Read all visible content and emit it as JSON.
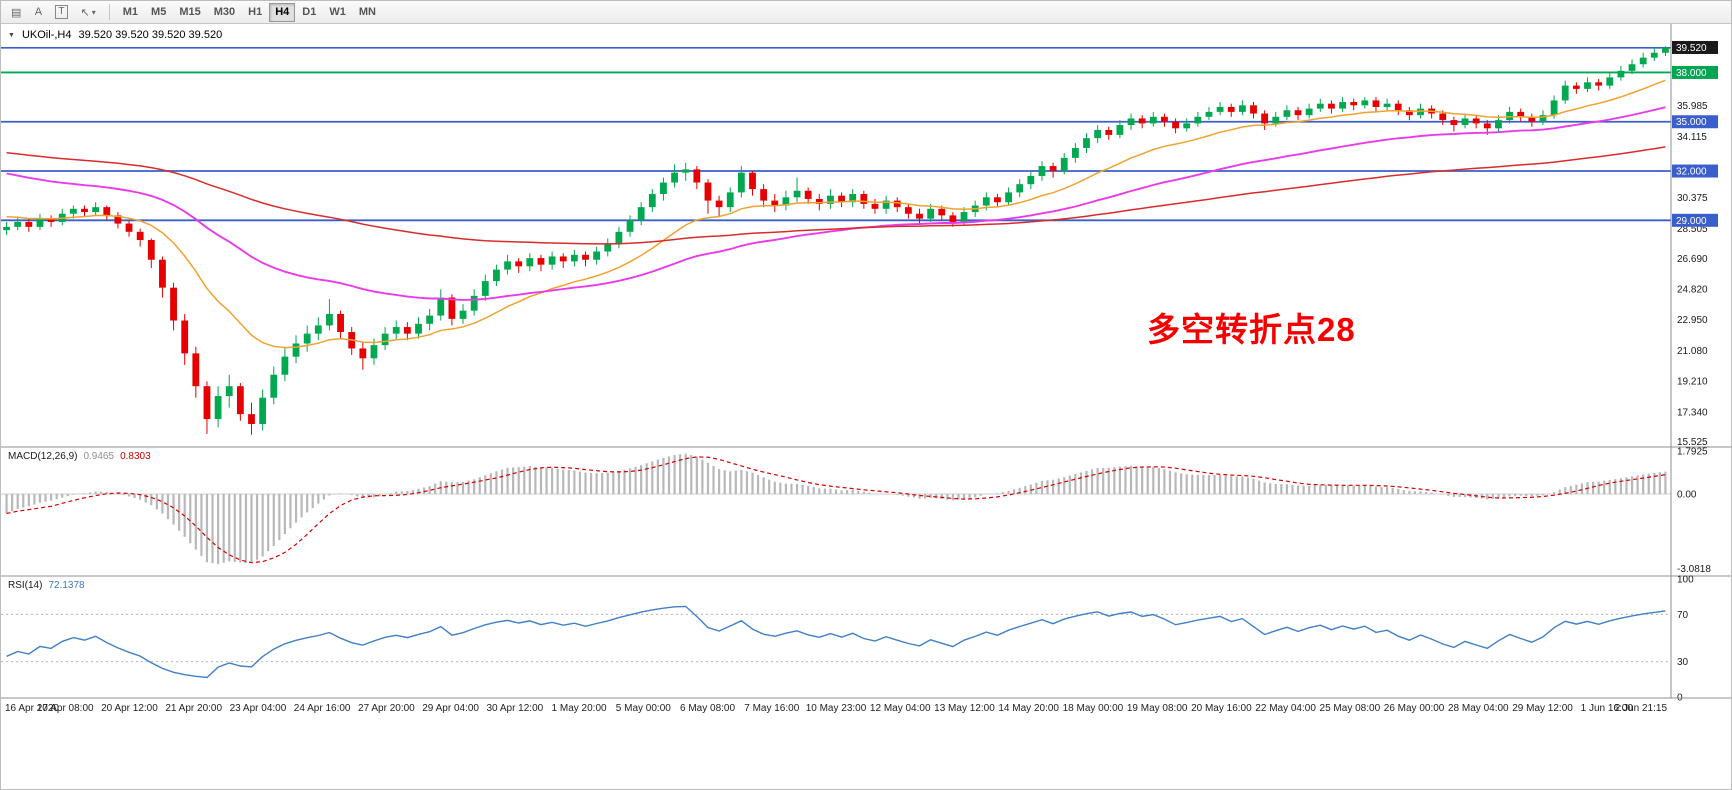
{
  "toolbar": {
    "tools": [
      {
        "name": "chart-window-icon",
        "glyph": "▤"
      },
      {
        "name": "letter-a-icon",
        "glyph": "A"
      },
      {
        "name": "text-box-icon",
        "glyph": "T"
      },
      {
        "name": "cursor-icon",
        "glyph": "↖"
      },
      {
        "name": "chevron-down-icon",
        "glyph": "▾"
      }
    ],
    "timeframes": [
      "M1",
      "M5",
      "M15",
      "M30",
      "H1",
      "H4",
      "D1",
      "W1",
      "MN"
    ],
    "active_timeframe": "H4"
  },
  "chart_data": {
    "type": "candlestick-with-indicators",
    "header": {
      "dropdown_glyph": "▼",
      "symbol": "UKOil-,H4",
      "ohlc": "39.520 39.520 39.520 39.520"
    },
    "annotation": {
      "text": "多空转折点28",
      "color": "#f40000"
    },
    "price_range": [
      15.2,
      40.95
    ],
    "colors": {
      "up": "#00A94F",
      "down": "#E60000",
      "histogram": "#b8b8b8",
      "signal": "#D40000",
      "rsi": "#4080C8"
    },
    "horizontal_lines": [
      {
        "price": 39.5,
        "color": "#3A5FCD",
        "width": 1.6
      },
      {
        "price": 38.0,
        "color": "#00A651",
        "width": 1.8
      },
      {
        "price": 35.0,
        "color": "#3A5FCD",
        "width": 1.8
      },
      {
        "price": 32.0,
        "color": "#3A5FCD",
        "width": 1.8
      },
      {
        "price": 29.0,
        "color": "#3A5FCD",
        "width": 1.8
      }
    ],
    "price_tags": [
      {
        "text": "39.520",
        "price": 39.52,
        "bg": "#1a1a1a"
      },
      {
        "text": "38.000",
        "price": 38.0,
        "bg": "#00A651"
      },
      {
        "text": "35.000",
        "price": 35.0,
        "bg": "#3A5FCD"
      },
      {
        "text": "32.000",
        "price": 32.0,
        "bg": "#3A5FCD"
      },
      {
        "text": "29.000",
        "price": 29.0,
        "bg": "#3A5FCD"
      }
    ],
    "axis_labels": [
      {
        "text": "35.985",
        "price": 35.985
      },
      {
        "text": "34.115",
        "price": 34.115
      },
      {
        "text": "30.375",
        "price": 30.375
      },
      {
        "text": "28.505",
        "price": 28.505
      },
      {
        "text": "26.690",
        "price": 26.69
      },
      {
        "text": "24.820",
        "price": 24.82
      },
      {
        "text": "22.950",
        "price": 22.95
      },
      {
        "text": "21.080",
        "price": 21.08
      },
      {
        "text": "19.210",
        "price": 19.21
      },
      {
        "text": "17.340",
        "price": 17.34
      },
      {
        "text": "15.525",
        "price": 15.525
      }
    ],
    "moving_averages": [
      {
        "name": "fast-ma",
        "period": 16,
        "seed": 29.3,
        "color": "#EFA32F",
        "width": 1.5
      },
      {
        "name": "mid-ma",
        "period": 45,
        "seed": 32.0,
        "color": "#E93CE9",
        "width": 1.9
      },
      {
        "name": "slow-ma",
        "period": 110,
        "seed": 33.2,
        "color": "#D92B2B",
        "width": 1.5
      }
    ],
    "candles": [
      [
        28.4,
        28.9,
        28.1,
        28.6
      ],
      [
        28.6,
        29.2,
        28.4,
        28.9
      ],
      [
        28.9,
        29.1,
        28.3,
        28.6
      ],
      [
        28.6,
        29.4,
        28.4,
        29.1
      ],
      [
        29.1,
        29.3,
        28.6,
        28.9
      ],
      [
        28.9,
        29.7,
        28.7,
        29.4
      ],
      [
        29.4,
        29.9,
        29.1,
        29.7
      ],
      [
        29.7,
        29.9,
        29.2,
        29.5
      ],
      [
        29.5,
        30.1,
        29.3,
        29.8
      ],
      [
        29.8,
        29.9,
        29.0,
        29.3
      ],
      [
        29.3,
        29.5,
        28.5,
        28.8
      ],
      [
        28.8,
        29.0,
        28.0,
        28.3
      ],
      [
        28.3,
        28.5,
        27.4,
        27.8
      ],
      [
        27.8,
        27.9,
        26.1,
        26.6
      ],
      [
        26.6,
        26.8,
        24.3,
        24.9
      ],
      [
        24.9,
        25.2,
        22.3,
        22.9
      ],
      [
        22.9,
        23.3,
        20.2,
        20.9
      ],
      [
        20.9,
        21.3,
        18.2,
        18.9
      ],
      [
        18.9,
        19.2,
        16.0,
        16.9
      ],
      [
        16.9,
        18.9,
        16.4,
        18.3
      ],
      [
        18.3,
        19.6,
        17.6,
        18.9
      ],
      [
        18.9,
        19.1,
        16.8,
        17.2
      ],
      [
        17.2,
        17.9,
        15.95,
        16.6
      ],
      [
        16.6,
        18.7,
        16.2,
        18.2
      ],
      [
        18.2,
        20.1,
        17.8,
        19.6
      ],
      [
        19.6,
        21.3,
        19.2,
        20.7
      ],
      [
        20.7,
        22.0,
        20.3,
        21.5
      ],
      [
        21.5,
        22.6,
        21.0,
        22.1
      ],
      [
        22.1,
        23.1,
        21.7,
        22.6
      ],
      [
        22.6,
        24.2,
        22.3,
        23.3
      ],
      [
        23.3,
        23.5,
        21.8,
        22.2
      ],
      [
        22.2,
        22.5,
        20.8,
        21.2
      ],
      [
        21.2,
        21.6,
        19.9,
        20.6
      ],
      [
        20.6,
        21.8,
        20.2,
        21.4
      ],
      [
        21.4,
        22.5,
        21.1,
        22.1
      ],
      [
        22.1,
        22.9,
        21.7,
        22.5
      ],
      [
        22.5,
        22.8,
        21.7,
        22.1
      ],
      [
        22.1,
        23.1,
        21.8,
        22.7
      ],
      [
        22.7,
        23.6,
        22.3,
        23.2
      ],
      [
        23.2,
        24.8,
        22.9,
        24.3
      ],
      [
        24.3,
        24.5,
        22.6,
        23.0
      ],
      [
        23.0,
        23.9,
        22.7,
        23.5
      ],
      [
        23.5,
        24.8,
        23.2,
        24.4
      ],
      [
        24.4,
        25.7,
        24.1,
        25.3
      ],
      [
        25.3,
        26.3,
        25.0,
        26.0
      ],
      [
        26.0,
        26.9,
        25.7,
        26.5
      ],
      [
        26.5,
        26.7,
        25.8,
        26.2
      ],
      [
        26.2,
        27.0,
        25.9,
        26.7
      ],
      [
        26.7,
        26.9,
        25.9,
        26.3
      ],
      [
        26.3,
        27.1,
        26.0,
        26.8
      ],
      [
        26.8,
        27.0,
        26.1,
        26.5
      ],
      [
        26.5,
        27.2,
        26.2,
        26.9
      ],
      [
        26.9,
        27.1,
        26.2,
        26.6
      ],
      [
        26.6,
        27.4,
        26.3,
        27.1
      ],
      [
        27.1,
        27.9,
        26.8,
        27.6
      ],
      [
        27.6,
        28.6,
        27.3,
        28.3
      ],
      [
        28.3,
        29.3,
        28.0,
        29.0
      ],
      [
        29.0,
        30.1,
        28.7,
        29.8
      ],
      [
        29.8,
        30.9,
        29.5,
        30.6
      ],
      [
        30.6,
        31.6,
        30.2,
        31.3
      ],
      [
        31.3,
        32.4,
        31.0,
        31.9
      ],
      [
        31.9,
        32.5,
        31.4,
        32.1
      ],
      [
        32.1,
        32.3,
        30.9,
        31.3
      ],
      [
        31.3,
        31.5,
        29.4,
        30.2
      ],
      [
        30.2,
        30.5,
        29.2,
        29.8
      ],
      [
        29.8,
        31.0,
        29.5,
        30.7
      ],
      [
        30.7,
        32.3,
        30.4,
        31.9
      ],
      [
        31.9,
        32.0,
        30.5,
        30.9
      ],
      [
        30.9,
        31.2,
        29.8,
        30.2
      ],
      [
        30.2,
        30.6,
        29.5,
        29.9
      ],
      [
        29.9,
        30.8,
        29.6,
        30.4
      ],
      [
        30.4,
        31.6,
        30.1,
        30.8
      ],
      [
        30.8,
        31.0,
        30.0,
        30.3
      ],
      [
        30.3,
        30.6,
        29.6,
        30.0
      ],
      [
        30.0,
        30.9,
        29.7,
        30.5
      ],
      [
        30.5,
        30.7,
        29.8,
        30.1
      ],
      [
        30.1,
        30.9,
        29.8,
        30.6
      ],
      [
        30.6,
        30.8,
        29.7,
        30.0
      ],
      [
        30.0,
        30.3,
        29.4,
        29.7
      ],
      [
        29.7,
        30.5,
        29.4,
        30.2
      ],
      [
        30.2,
        30.4,
        29.5,
        29.8
      ],
      [
        29.8,
        30.0,
        29.1,
        29.4
      ],
      [
        29.4,
        29.7,
        28.8,
        29.1
      ],
      [
        29.1,
        30.0,
        28.9,
        29.7
      ],
      [
        29.7,
        29.9,
        29.0,
        29.3
      ],
      [
        29.3,
        29.5,
        28.6,
        28.9
      ],
      [
        28.9,
        29.8,
        28.7,
        29.5
      ],
      [
        29.5,
        30.2,
        29.2,
        29.9
      ],
      [
        29.9,
        30.7,
        29.6,
        30.4
      ],
      [
        30.4,
        30.6,
        29.8,
        30.1
      ],
      [
        30.1,
        31.0,
        29.9,
        30.7
      ],
      [
        30.7,
        31.5,
        30.4,
        31.2
      ],
      [
        31.2,
        32.0,
        30.9,
        31.7
      ],
      [
        31.7,
        32.6,
        31.4,
        32.3
      ],
      [
        32.3,
        32.5,
        31.6,
        32.0
      ],
      [
        32.0,
        33.1,
        31.8,
        32.8
      ],
      [
        32.8,
        33.7,
        32.5,
        33.4
      ],
      [
        33.4,
        34.3,
        33.1,
        34.0
      ],
      [
        34.0,
        34.8,
        33.7,
        34.5
      ],
      [
        34.5,
        34.7,
        33.9,
        34.2
      ],
      [
        34.2,
        35.1,
        34.0,
        34.8
      ],
      [
        34.8,
        35.5,
        34.5,
        35.2
      ],
      [
        35.2,
        35.4,
        34.6,
        34.9
      ],
      [
        34.9,
        35.6,
        34.7,
        35.3
      ],
      [
        35.3,
        35.5,
        34.7,
        35.0
      ],
      [
        35.0,
        35.2,
        34.3,
        34.6
      ],
      [
        34.6,
        35.2,
        34.4,
        34.9
      ],
      [
        34.9,
        35.6,
        34.7,
        35.3
      ],
      [
        35.3,
        35.9,
        35.1,
        35.6
      ],
      [
        35.6,
        36.2,
        35.4,
        35.9
      ],
      [
        35.9,
        36.1,
        35.3,
        35.6
      ],
      [
        35.6,
        36.3,
        35.4,
        36.0
      ],
      [
        36.0,
        36.2,
        35.2,
        35.5
      ],
      [
        35.5,
        35.7,
        34.5,
        34.9
      ],
      [
        34.9,
        35.6,
        34.7,
        35.3
      ],
      [
        35.3,
        36.0,
        35.1,
        35.7
      ],
      [
        35.7,
        35.9,
        35.1,
        35.4
      ],
      [
        35.4,
        36.1,
        35.2,
        35.8
      ],
      [
        35.8,
        36.4,
        35.6,
        36.1
      ],
      [
        36.1,
        36.3,
        35.5,
        35.8
      ],
      [
        35.8,
        36.5,
        35.6,
        36.2
      ],
      [
        36.2,
        36.4,
        35.7,
        36.0
      ],
      [
        36.0,
        36.5,
        35.8,
        36.3
      ],
      [
        36.3,
        36.5,
        35.6,
        35.9
      ],
      [
        35.9,
        36.4,
        35.7,
        36.1
      ],
      [
        36.1,
        36.3,
        35.4,
        35.7
      ],
      [
        35.7,
        35.9,
        35.1,
        35.4
      ],
      [
        35.4,
        36.1,
        35.2,
        35.8
      ],
      [
        35.8,
        36.0,
        35.2,
        35.5
      ],
      [
        35.5,
        35.7,
        34.8,
        35.1
      ],
      [
        35.1,
        35.3,
        34.4,
        34.8
      ],
      [
        34.8,
        35.5,
        34.6,
        35.2
      ],
      [
        35.2,
        35.4,
        34.6,
        34.9
      ],
      [
        34.9,
        35.1,
        34.2,
        34.6
      ],
      [
        34.6,
        35.4,
        34.4,
        35.1
      ],
      [
        35.1,
        35.9,
        34.9,
        35.6
      ],
      [
        35.6,
        35.8,
        35.0,
        35.3
      ],
      [
        35.3,
        35.5,
        34.7,
        35.0
      ],
      [
        35.0,
        35.7,
        34.8,
        35.4
      ],
      [
        35.4,
        36.6,
        35.2,
        36.3
      ],
      [
        36.3,
        37.5,
        36.1,
        37.2
      ],
      [
        37.2,
        37.4,
        36.7,
        37.0
      ],
      [
        37.0,
        37.7,
        36.8,
        37.4
      ],
      [
        37.4,
        37.6,
        36.9,
        37.2
      ],
      [
        37.2,
        38.0,
        37.0,
        37.7
      ],
      [
        37.7,
        38.4,
        37.5,
        38.1
      ],
      [
        38.1,
        38.8,
        37.9,
        38.5
      ],
      [
        38.5,
        39.2,
        38.3,
        38.9
      ],
      [
        38.9,
        39.5,
        38.7,
        39.2
      ],
      [
        39.2,
        39.6,
        39.0,
        39.52
      ]
    ],
    "macd": {
      "label": "MACD(12,26,9)",
      "value_main": "0.9465",
      "value_signal": "0.8303",
      "range": [
        -3.4,
        1.95
      ],
      "axis": [
        {
          "text": "1.7925",
          "v": 1.7925
        },
        {
          "text": "0.00",
          "v": 0
        },
        {
          "text": "-3.0818",
          "v": -3.0818
        }
      ]
    },
    "rsi": {
      "label": "RSI(14)",
      "value": "72.1378",
      "levels": [
        70,
        30
      ],
      "axis": [
        {
          "text": "100",
          "v": 100
        },
        {
          "text": "70",
          "v": 70
        },
        {
          "text": "30",
          "v": 30
        },
        {
          "text": "0",
          "v": 0
        }
      ]
    },
    "x_labels": [
      "16 Apr 2020",
      "17 Apr 08:00",
      "20 Apr 12:00",
      "21 Apr 20:00",
      "23 Apr 04:00",
      "24 Apr 16:00",
      "27 Apr 20:00",
      "29 Apr 04:00",
      "30 Apr 12:00",
      "1 May 20:00",
      "5 May 00:00",
      "6 May 08:00",
      "7 May 16:00",
      "10 May 23:00",
      "12 May 04:00",
      "13 May 12:00",
      "14 May 20:00",
      "18 May 00:00",
      "19 May 08:00",
      "20 May 16:00",
      "22 May 04:00",
      "25 May 08:00",
      "26 May 00:00",
      "28 May 04:00",
      "29 May 12:00",
      "1 Jun 16:00",
      "2 Jun 21:15"
    ]
  }
}
